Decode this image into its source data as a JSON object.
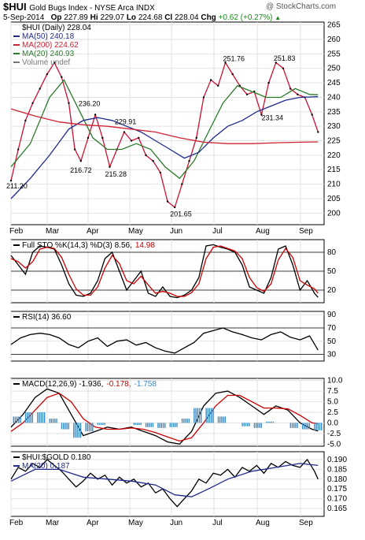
{
  "header": {
    "ticker": "$HUI",
    "name": "Gold Bugs Index - NYSE Arca  INDX",
    "watermark": "@ StockCharts.com",
    "date": "5-Sep-2014",
    "open_label": "Op",
    "open": "227.89",
    "high_label": "Hi",
    "high": "229.07",
    "low_label": "Lo",
    "low": "224.68",
    "close_label": "Cl",
    "close": "228.04",
    "chg_label": "Chg",
    "chg": "+0.62 (+0.27%)",
    "chg_arrow": "▲"
  },
  "x_axis": {
    "months": [
      "Feb",
      "Mar",
      "Apr",
      "May",
      "Jun",
      "Jul",
      "Aug",
      "Sep"
    ]
  },
  "chart_data": [
    {
      "type": "line",
      "panel": "price",
      "legend": [
        {
          "text": "$HUI (Daily) 228.04",
          "color": "#000000"
        },
        {
          "text": "MA(50) 240.18",
          "color": "#1f2a8c"
        },
        {
          "text": "MA(200) 224.62",
          "color": "#cc2233"
        },
        {
          "text": "MA(20) 240.93",
          "color": "#2a7a2a"
        },
        {
          "text": "Volume undef",
          "color": "#777777"
        }
      ],
      "ylim": [
        196,
        266
      ],
      "ticks": [
        200,
        205,
        210,
        215,
        220,
        225,
        230,
        235,
        240,
        245,
        250,
        255,
        260,
        265
      ],
      "annotations": [
        {
          "text": "211.20",
          "x": 0,
          "y": 211.2
        },
        {
          "text": "216.72",
          "x": 2.65,
          "y": 216.72
        },
        {
          "text": "236.20",
          "x": 3.0,
          "y": 236.2
        },
        {
          "text": "229.91",
          "x": 4.5,
          "y": 229.91
        },
        {
          "text": "215.28",
          "x": 4.1,
          "y": 215.28
        },
        {
          "text": "201.65",
          "x": 6.8,
          "y": 201.65
        },
        {
          "text": "251.76",
          "x": 9.0,
          "y": 251.76
        },
        {
          "text": "251.83",
          "x": 11.1,
          "y": 251.83
        },
        {
          "text": "231.34",
          "x": 10.6,
          "y": 231.34
        }
      ],
      "series": [
        {
          "name": "$HUI (Daily)",
          "color": "#cc1133",
          "x": [
            0,
            0.3,
            0.6,
            0.9,
            1.2,
            1.5,
            1.8,
            2.1,
            2.4,
            2.65,
            2.9,
            3.2,
            3.5,
            3.8,
            4.1,
            4.4,
            4.7,
            5.0,
            5.3,
            5.6,
            5.9,
            6.2,
            6.5,
            6.8,
            7.1,
            7.4,
            7.7,
            8.0,
            8.3,
            8.6,
            8.9,
            9.2,
            9.5,
            9.8,
            10.1,
            10.4,
            10.7,
            11.0,
            11.3,
            11.6,
            11.9,
            12.2,
            12.5,
            12.75
          ],
          "values": [
            211.2,
            222,
            232,
            238,
            243,
            248,
            252,
            247,
            238,
            222,
            218,
            226,
            234,
            226,
            216,
            222,
            228,
            225,
            226,
            220,
            218,
            214,
            204,
            202,
            210,
            218,
            226,
            240,
            246,
            244,
            252,
            248,
            244,
            241,
            242,
            234,
            245,
            252,
            250,
            243,
            241,
            240,
            234,
            228
          ]
        },
        {
          "name": "MA(20)",
          "color": "#2a7a2a",
          "x": [
            0,
            0.8,
            1.6,
            2.2,
            2.8,
            3.4,
            4.0,
            4.6,
            5.2,
            5.8,
            6.4,
            7.0,
            7.6,
            8.2,
            8.8,
            9.4,
            10.0,
            10.6,
            11.2,
            11.8,
            12.4,
            12.75
          ],
          "values": [
            216,
            224,
            240,
            246,
            236,
            226,
            222,
            222,
            224,
            222,
            216,
            212,
            218,
            228,
            238,
            244,
            242,
            240,
            240,
            243,
            241,
            240.9
          ]
        },
        {
          "name": "MA(50)",
          "color": "#1f2a8c",
          "x": [
            0,
            0.8,
            1.6,
            2.4,
            3.0,
            3.6,
            4.2,
            4.8,
            5.4,
            6.0,
            6.6,
            7.2,
            7.8,
            8.4,
            9.0,
            9.6,
            10.2,
            10.8,
            11.4,
            12.0,
            12.75
          ],
          "values": [
            205,
            212,
            220,
            229,
            232,
            233,
            232,
            230,
            228,
            225,
            222,
            219,
            221,
            226,
            230,
            232,
            235,
            237,
            239,
            240,
            240.2
          ]
        },
        {
          "name": "MA(200)",
          "color": "#cc2233",
          "x": [
            0,
            1.0,
            2.0,
            3.0,
            4.0,
            5.0,
            6.0,
            7.0,
            8.0,
            9.0,
            10.0,
            11.0,
            12.0,
            12.75
          ],
          "values": [
            236,
            233.5,
            231.5,
            230.5,
            230,
            229,
            228,
            226,
            224.5,
            224,
            224,
            224.3,
            224.5,
            224.6
          ]
        }
      ]
    },
    {
      "type": "line",
      "panel": "stochastic",
      "legend": [
        {
          "text": "Full STO %K(14,3) %D(3) 8.56,",
          "color": "#000000"
        },
        {
          "text": "14.98",
          "color": "#cc0000"
        }
      ],
      "ylim": [
        0,
        100
      ],
      "ticks": [
        20,
        50,
        80
      ],
      "reference_lines": [
        20,
        50,
        80
      ],
      "series": [
        {
          "name": "%K",
          "color": "#000000",
          "x": [
            0,
            0.3,
            0.6,
            0.9,
            1.2,
            1.5,
            1.8,
            2.1,
            2.4,
            2.7,
            3.0,
            3.3,
            3.6,
            3.9,
            4.2,
            4.5,
            4.8,
            5.1,
            5.4,
            5.7,
            6.0,
            6.3,
            6.6,
            6.9,
            7.2,
            7.5,
            7.8,
            8.1,
            8.4,
            8.7,
            9.0,
            9.3,
            9.6,
            9.9,
            10.2,
            10.5,
            10.8,
            11.1,
            11.4,
            11.7,
            12.0,
            12.3,
            12.6,
            12.75
          ],
          "values": [
            75,
            60,
            45,
            80,
            90,
            88,
            85,
            60,
            30,
            12,
            10,
            15,
            35,
            70,
            80,
            50,
            20,
            35,
            50,
            15,
            10,
            25,
            10,
            8,
            12,
            20,
            40,
            90,
            92,
            88,
            85,
            80,
            60,
            25,
            20,
            15,
            40,
            85,
            90,
            60,
            20,
            35,
            15,
            8.56
          ]
        },
        {
          "name": "%D",
          "color": "#cc0000",
          "x": [
            0,
            0.3,
            0.6,
            0.9,
            1.2,
            1.5,
            1.8,
            2.1,
            2.4,
            2.7,
            3.0,
            3.3,
            3.6,
            3.9,
            4.2,
            4.5,
            4.8,
            5.1,
            5.4,
            5.7,
            6.0,
            6.3,
            6.6,
            6.9,
            7.2,
            7.5,
            7.8,
            8.1,
            8.4,
            8.7,
            9.0,
            9.3,
            9.6,
            9.9,
            10.2,
            10.5,
            10.8,
            11.1,
            11.4,
            11.7,
            12.0,
            12.3,
            12.6,
            12.75
          ],
          "values": [
            70,
            65,
            55,
            65,
            85,
            88,
            86,
            72,
            45,
            22,
            12,
            12,
            25,
            55,
            75,
            62,
            35,
            30,
            42,
            28,
            15,
            18,
            15,
            10,
            10,
            16,
            30,
            70,
            88,
            90,
            86,
            82,
            70,
            40,
            24,
            18,
            30,
            68,
            86,
            72,
            35,
            28,
            22,
            14.98
          ]
        }
      ]
    },
    {
      "type": "line",
      "panel": "rsi",
      "legend": [
        {
          "text": "RSI(14) 36.60",
          "color": "#000000"
        }
      ],
      "ylim": [
        20,
        95
      ],
      "ticks": [
        30,
        50,
        70,
        90
      ],
      "reference_lines": [
        30,
        70
      ],
      "series": [
        {
          "name": "RSI(14)",
          "color": "#000000",
          "x": [
            0,
            0.4,
            0.8,
            1.2,
            1.6,
            2.0,
            2.4,
            2.8,
            3.2,
            3.6,
            4.0,
            4.4,
            4.8,
            5.2,
            5.6,
            6.0,
            6.4,
            6.8,
            7.2,
            7.6,
            8.0,
            8.4,
            8.8,
            9.2,
            9.6,
            10.0,
            10.4,
            10.8,
            11.2,
            11.6,
            12.0,
            12.4,
            12.75
          ],
          "values": [
            45,
            55,
            60,
            62,
            60,
            55,
            45,
            40,
            50,
            55,
            42,
            50,
            52,
            44,
            48,
            40,
            35,
            32,
            40,
            48,
            62,
            66,
            70,
            64,
            60,
            55,
            52,
            60,
            64,
            56,
            52,
            58,
            36.6
          ]
        }
      ]
    },
    {
      "type": "line",
      "panel": "macd",
      "legend": [
        {
          "text": "MACD(12,26,9) -1.936,",
          "color": "#000000"
        },
        {
          "text": "-0.178,",
          "color": "#cc0000"
        },
        {
          "text": "-1.758",
          "color": "#3a8cc4"
        }
      ],
      "ylim": [
        -5.5,
        10.5
      ],
      "ticks": [
        -5.0,
        -2.5,
        0.0,
        2.5,
        5.0,
        7.5,
        10.0
      ],
      "series": [
        {
          "name": "MACD",
          "color": "#000000",
          "x": [
            0,
            0.5,
            1.0,
            1.5,
            2.0,
            2.5,
            3.0,
            3.5,
            4.0,
            4.5,
            5.0,
            5.5,
            6.0,
            6.5,
            7.0,
            7.5,
            8.0,
            8.5,
            9.0,
            9.5,
            10.0,
            10.5,
            11.0,
            11.5,
            12.0,
            12.5,
            12.75
          ],
          "values": [
            -1,
            2,
            6,
            8,
            7,
            2,
            -3,
            -2,
            -1,
            -1.5,
            -1,
            -2,
            -3,
            -4.5,
            -5,
            -2,
            4,
            7,
            7.5,
            6,
            4,
            2,
            4,
            3,
            0,
            -1.5,
            -1.936
          ]
        },
        {
          "name": "Signal",
          "color": "#cc0000",
          "x": [
            0,
            0.5,
            1.0,
            1.5,
            2.0,
            2.5,
            3.0,
            3.5,
            4.0,
            4.5,
            5.0,
            5.5,
            6.0,
            6.5,
            7.0,
            7.5,
            8.0,
            8.5,
            9.0,
            9.5,
            10.0,
            10.5,
            11.0,
            11.5,
            12.0,
            12.5,
            12.75
          ],
          "values": [
            -2,
            0,
            3,
            6,
            7,
            5,
            1,
            -1,
            -1.5,
            -1.5,
            -1.2,
            -1.5,
            -2.3,
            -3.3,
            -4.3,
            -3.5,
            0,
            4,
            6.5,
            6.5,
            5,
            3.5,
            3.5,
            3.3,
            1.8,
            0,
            -0.178
          ]
        },
        {
          "name": "Histogram",
          "color": "#3a8cc4",
          "x": [
            0.25,
            0.75,
            1.25,
            1.75,
            2.25,
            2.75,
            3.25,
            3.75,
            4.25,
            4.75,
            5.25,
            5.75,
            6.25,
            6.75,
            7.25,
            7.75,
            8.25,
            8.75,
            9.25,
            9.75,
            10.25,
            10.75,
            11.25,
            11.75,
            12.25,
            12.75
          ],
          "values": [
            1.5,
            2.5,
            2.5,
            1,
            -1.5,
            -3.5,
            -2,
            -0.5,
            0,
            0,
            -0.5,
            -1,
            -1.2,
            -1,
            1,
            3.5,
            3.5,
            1.5,
            0,
            -0.8,
            -1.2,
            0.3,
            0,
            -1.2,
            -1.5,
            -1.758
          ]
        }
      ]
    },
    {
      "type": "line",
      "panel": "ratio",
      "legend": [
        {
          "text": "$HUI:$GOLD 0.180",
          "color": "#000000"
        },
        {
          "text": "MA(20) 0.187",
          "color": "#1f2a8c"
        }
      ],
      "ylim": [
        0.161,
        0.194
      ],
      "ticks": [
        0.165,
        0.17,
        0.175,
        0.18,
        0.185,
        0.19
      ],
      "series": [
        {
          "name": "$HUI:$GOLD",
          "color": "#000000",
          "x": [
            0,
            0.3,
            0.6,
            0.9,
            1.2,
            1.5,
            1.8,
            2.1,
            2.4,
            2.7,
            3.0,
            3.3,
            3.6,
            3.9,
            4.2,
            4.5,
            4.8,
            5.1,
            5.4,
            5.7,
            6.0,
            6.3,
            6.6,
            6.9,
            7.2,
            7.5,
            7.8,
            8.1,
            8.4,
            8.7,
            9.0,
            9.3,
            9.6,
            9.9,
            10.2,
            10.5,
            10.8,
            11.1,
            11.4,
            11.7,
            12.0,
            12.3,
            12.6,
            12.75
          ],
          "values": [
            0.18,
            0.186,
            0.184,
            0.188,
            0.186,
            0.19,
            0.187,
            0.184,
            0.18,
            0.176,
            0.179,
            0.183,
            0.18,
            0.182,
            0.177,
            0.181,
            0.178,
            0.18,
            0.176,
            0.178,
            0.173,
            0.175,
            0.17,
            0.166,
            0.17,
            0.174,
            0.18,
            0.178,
            0.183,
            0.182,
            0.185,
            0.181,
            0.186,
            0.184,
            0.187,
            0.183,
            0.188,
            0.186,
            0.189,
            0.187,
            0.186,
            0.19,
            0.184,
            0.18
          ]
        },
        {
          "name": "MA(20)",
          "color": "#1f2a8c",
          "x": [
            0,
            1.0,
            2.0,
            3.0,
            4.0,
            5.0,
            6.0,
            6.8,
            7.5,
            8.2,
            9.0,
            10.0,
            11.0,
            12.0,
            12.75
          ],
          "values": [
            0.179,
            0.185,
            0.185,
            0.181,
            0.18,
            0.179,
            0.177,
            0.172,
            0.171,
            0.175,
            0.18,
            0.184,
            0.186,
            0.188,
            0.187
          ]
        }
      ]
    }
  ]
}
